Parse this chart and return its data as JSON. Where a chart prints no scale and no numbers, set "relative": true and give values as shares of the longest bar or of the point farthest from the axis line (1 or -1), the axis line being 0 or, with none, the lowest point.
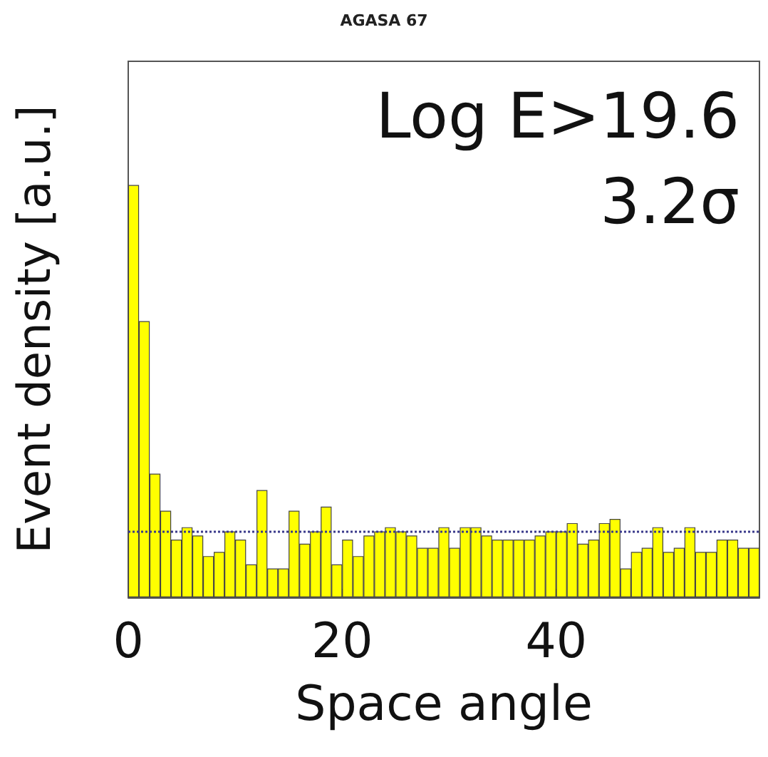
{
  "chart_data": {
    "type": "bar",
    "title": "AGASA 67",
    "xlabel": "Space angle",
    "ylabel": "Event density [a.u.]",
    "relative": true,
    "color": "#ffff00",
    "x": [
      0.5,
      1.5,
      2.5,
      3.5,
      4.5,
      5.5,
      6.5,
      7.5,
      8.5,
      9.5,
      10.5,
      11.5,
      12.5,
      13.5,
      14.5,
      15.5,
      16.5,
      17.5,
      18.5,
      19.5,
      20.5,
      21.5,
      22.5,
      23.5,
      24.5,
      25.5,
      26.5,
      27.5,
      28.5,
      29.5,
      30.5,
      31.5,
      32.5,
      33.5,
      34.5,
      35.5,
      36.5,
      37.5,
      38.5,
      39.5,
      40.5,
      41.5,
      42.5,
      43.5,
      44.5,
      45.5,
      46.5,
      47.5,
      48.5,
      49.5,
      50.5,
      51.5,
      52.5,
      53.5,
      54.5,
      55.5,
      56.5,
      57.5,
      58.5
    ],
    "values": [
      1.0,
      0.67,
      0.3,
      0.21,
      0.14,
      0.17,
      0.15,
      0.1,
      0.11,
      0.16,
      0.14,
      0.08,
      0.26,
      0.07,
      0.07,
      0.21,
      0.13,
      0.16,
      0.22,
      0.08,
      0.14,
      0.1,
      0.15,
      0.16,
      0.17,
      0.16,
      0.15,
      0.12,
      0.12,
      0.17,
      0.12,
      0.17,
      0.17,
      0.15,
      0.14,
      0.14,
      0.14,
      0.14,
      0.15,
      0.16,
      0.16,
      0.18,
      0.13,
      0.14,
      0.18,
      0.19,
      0.07,
      0.11,
      0.12,
      0.17,
      0.11,
      0.12,
      0.17,
      0.11,
      0.11,
      0.14,
      0.14,
      0.12,
      0.12
    ],
    "xlim": [
      0,
      59
    ],
    "xticks": [
      0,
      20,
      40
    ],
    "ref_lines": [
      {
        "axis": "y",
        "value": 0.16,
        "color": "#3a3a8c",
        "line_style": "dotted"
      }
    ],
    "annotations": [
      "Log E>19.6",
      "3.2σ"
    ],
    "grid": false
  }
}
